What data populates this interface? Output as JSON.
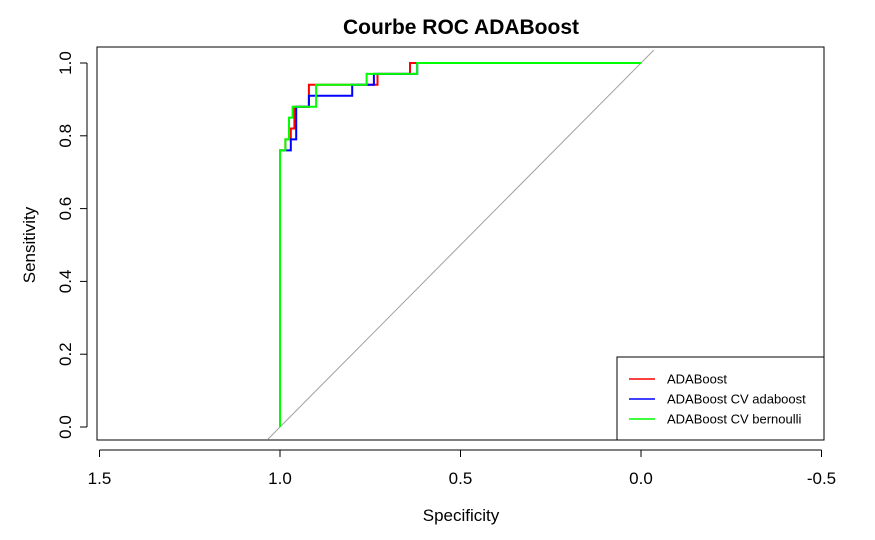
{
  "chart_data": {
    "type": "line",
    "title": "Courbe ROC ADABoost",
    "xlabel": "Specificity",
    "ylabel": "Sensitivity",
    "xlim": [
      1.5,
      -0.5
    ],
    "ylim": [
      0.0,
      1.0
    ],
    "x_reversed": true,
    "x_ticks": [
      "1.5",
      "1.0",
      "0.5",
      "0.0",
      "-0.5"
    ],
    "y_ticks": [
      "0.0",
      "0.2",
      "0.4",
      "0.6",
      "0.8",
      "1.0"
    ],
    "grid": false,
    "legend_position": "bottom-right",
    "reference_line": {
      "from": [
        1.0,
        0.0
      ],
      "to": [
        0.0,
        1.0
      ],
      "color": "#a0a0a0"
    },
    "series": [
      {
        "name": "ADABoost",
        "color": "#ff0000",
        "points": [
          [
            1.0,
            0.0
          ],
          [
            1.0,
            0.76
          ],
          [
            0.985,
            0.76
          ],
          [
            0.985,
            0.79
          ],
          [
            0.97,
            0.79
          ],
          [
            0.97,
            0.82
          ],
          [
            0.96,
            0.82
          ],
          [
            0.96,
            0.88
          ],
          [
            0.92,
            0.88
          ],
          [
            0.92,
            0.94
          ],
          [
            0.73,
            0.94
          ],
          [
            0.73,
            0.97
          ],
          [
            0.64,
            0.97
          ],
          [
            0.64,
            1.0
          ],
          [
            0.0,
            1.0
          ]
        ]
      },
      {
        "name": "ADABoost CV adaboost",
        "color": "#0000ff",
        "points": [
          [
            1.0,
            0.0
          ],
          [
            1.0,
            0.76
          ],
          [
            0.97,
            0.76
          ],
          [
            0.97,
            0.79
          ],
          [
            0.955,
            0.79
          ],
          [
            0.955,
            0.88
          ],
          [
            0.92,
            0.88
          ],
          [
            0.92,
            0.91
          ],
          [
            0.8,
            0.91
          ],
          [
            0.8,
            0.94
          ],
          [
            0.74,
            0.94
          ],
          [
            0.74,
            0.97
          ],
          [
            0.62,
            0.97
          ],
          [
            0.62,
            1.0
          ],
          [
            0.0,
            1.0
          ]
        ]
      },
      {
        "name": "ADABoost CV bernoulli",
        "color": "#00ff00",
        "points": [
          [
            1.0,
            0.0
          ],
          [
            1.0,
            0.76
          ],
          [
            0.985,
            0.76
          ],
          [
            0.985,
            0.79
          ],
          [
            0.975,
            0.79
          ],
          [
            0.975,
            0.85
          ],
          [
            0.965,
            0.85
          ],
          [
            0.965,
            0.88
          ],
          [
            0.9,
            0.88
          ],
          [
            0.9,
            0.94
          ],
          [
            0.76,
            0.94
          ],
          [
            0.76,
            0.97
          ],
          [
            0.62,
            0.97
          ],
          [
            0.62,
            1.0
          ],
          [
            0.0,
            1.0
          ]
        ]
      }
    ]
  }
}
